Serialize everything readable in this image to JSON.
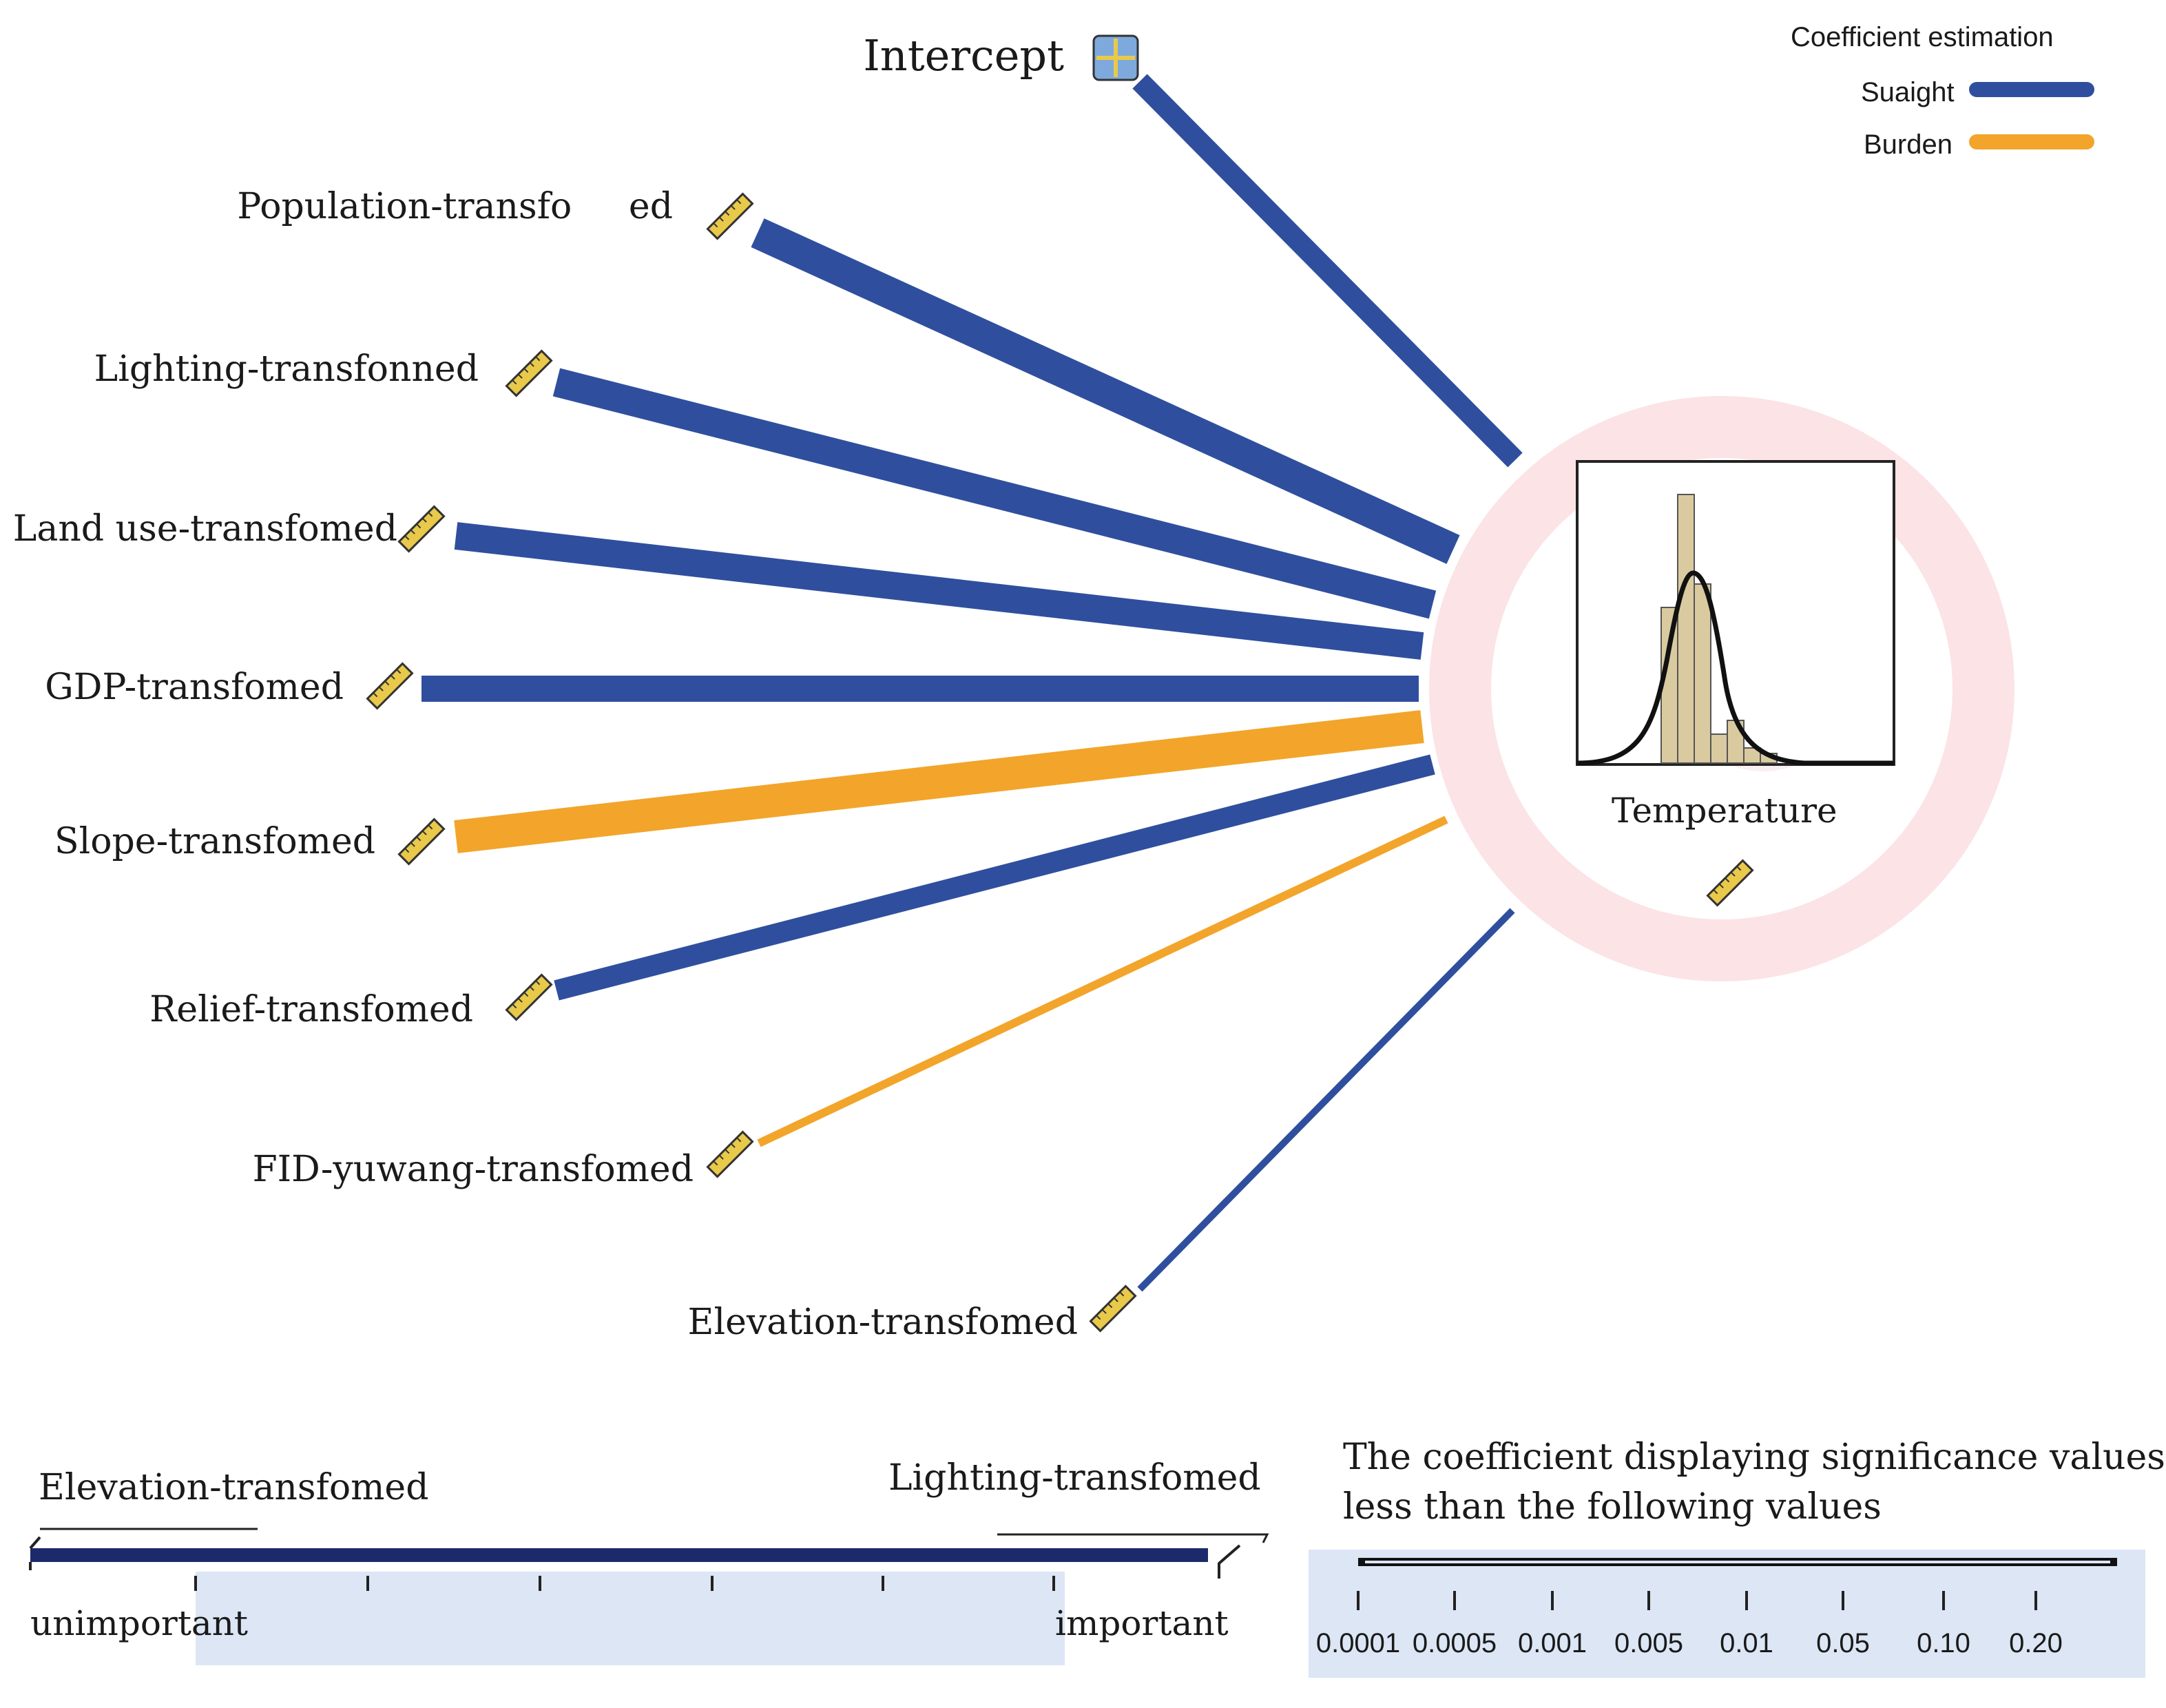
{
  "legend": {
    "title": "Coefficient estimation",
    "items": [
      {
        "name": "Suaight",
        "color": "#2f4f9e"
      },
      {
        "name": "Burden",
        "color": "#f2a52a"
      }
    ]
  },
  "intercept_label": "Intercept",
  "target": {
    "label": "Temperature"
  },
  "predictors": [
    {
      "label": "Population-transfo     ed",
      "sign": "Suaight"
    },
    {
      "label": "Lighting-transfonned",
      "sign": "Suaight"
    },
    {
      "label": "Land use-transfomed",
      "sign": "Suaight"
    },
    {
      "label": "GDP-transfomed",
      "sign": "Suaight"
    },
    {
      "label": "Slope-transfomed",
      "sign": "Burden"
    },
    {
      "label": "Relief-transfomed",
      "sign": "Suaight"
    },
    {
      "label": "FID-yuwang-transfomed",
      "sign": "Burden"
    },
    {
      "label": "Elevation-transfomed",
      "sign": "Suaight"
    }
  ],
  "importance_scale": {
    "left_example": "Elevation-transfomed",
    "right_example": "Lighting-transfomed",
    "low_label": "unimportant",
    "high_label": "important"
  },
  "significance_scale": {
    "title_line1": "The coefficient displaying significance values",
    "title_line2": "less than the following values",
    "ticks": [
      "0.0001",
      "0.0005",
      "0.001",
      "0.005",
      "0.01",
      "0.05",
      "0.10",
      "0.20"
    ]
  },
  "colors": {
    "positive": "#2f4f9e",
    "negative": "#f2a52a",
    "ruler_fill": "#e8c94a",
    "halo": "#fbe3e6",
    "histogram_fill": "#d9caa0",
    "scale_bg": "#dce6f5"
  }
}
